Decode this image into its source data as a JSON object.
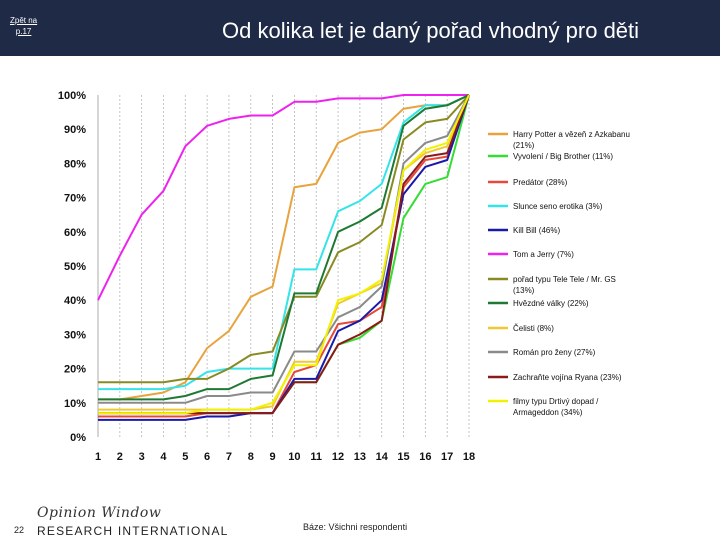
{
  "header": {
    "back_link_line1": "Zpět na",
    "back_link_line2": "p.17",
    "title": "Od kolika let je daný pořad vhodný pro děti"
  },
  "footer": {
    "page_number": "22",
    "logo_script": "Opinion Window",
    "logo_main": "RESEARCH INTERNATIONAL",
    "base_note": "Báze: Všichni respondenti"
  },
  "chart_data": {
    "type": "line",
    "title": "Od kolika let je daný pořad vhodný pro děti",
    "xlabel": "",
    "ylabel": "",
    "x": [
      1,
      2,
      3,
      4,
      5,
      6,
      7,
      8,
      9,
      10,
      11,
      12,
      13,
      14,
      15,
      16,
      17,
      18
    ],
    "ylim": [
      0,
      100
    ],
    "y_ticks": [
      "0%",
      "10%",
      "20%",
      "30%",
      "40%",
      "50%",
      "60%",
      "70%",
      "80%",
      "90%",
      "100%"
    ],
    "grid": "vertical dashed",
    "legend_position": "right",
    "series": [
      {
        "name": "Harry Potter a vězeň z Azkabanu (21%)",
        "color": "#e8a33d",
        "values": [
          11,
          11,
          12,
          13,
          16,
          26,
          31,
          41,
          44,
          73,
          74,
          86,
          89,
          90,
          96,
          97,
          97,
          100
        ]
      },
      {
        "name": "Vyvolení / Big Brother (11%)",
        "color": "#33dd33",
        "values": [
          7,
          7,
          7,
          7,
          7,
          7,
          7,
          7,
          7,
          16,
          16,
          27,
          29,
          34,
          64,
          74,
          76,
          100
        ]
      },
      {
        "name": "Predátor (28%)",
        "color": "#e8483a",
        "values": [
          6,
          6,
          6,
          6,
          6,
          7,
          7,
          7,
          7,
          19,
          21,
          33,
          34,
          38,
          73,
          81,
          82,
          100
        ]
      },
      {
        "name": "Slunce seno erotika (3%)",
        "color": "#33e4e8",
        "values": [
          14,
          14,
          14,
          14,
          15,
          19,
          20,
          20,
          20,
          49,
          49,
          66,
          69,
          74,
          92,
          97,
          97,
          100
        ]
      },
      {
        "name": "Kill Bill (46%)",
        "color": "#1a1aa8",
        "values": [
          5,
          5,
          5,
          5,
          5,
          6,
          6,
          7,
          7,
          17,
          17,
          31,
          34,
          40,
          71,
          79,
          81,
          100
        ]
      },
      {
        "name": "Tom a Jerry (7%)",
        "color": "#ee22ee",
        "values": [
          40,
          53,
          65,
          72,
          85,
          91,
          93,
          94,
          94,
          98,
          98,
          99,
          99,
          99,
          100,
          100,
          100,
          100
        ]
      },
      {
        "name": "pořad typu Tele Tele / Mr. GS (13%)",
        "color": "#8a8a22",
        "values": [
          16,
          16,
          16,
          16,
          17,
          17,
          20,
          24,
          25,
          41,
          41,
          54,
          57,
          62,
          87,
          92,
          93,
          100
        ]
      },
      {
        "name": "Hvězdné války (22%)",
        "color": "#1e7a33",
        "values": [
          11,
          11,
          11,
          11,
          12,
          14,
          14,
          17,
          18,
          42,
          42,
          60,
          63,
          67,
          91,
          96,
          97,
          100
        ]
      },
      {
        "name": "Čelisti (8%)",
        "color": "#f0c830",
        "values": [
          8,
          8,
          8,
          8,
          8,
          8,
          8,
          8,
          9,
          22,
          22,
          39,
          42,
          45,
          78,
          83,
          85,
          100
        ]
      },
      {
        "name": "Román pro ženy (27%)",
        "color": "#8a8a8a",
        "values": [
          10,
          10,
          10,
          10,
          10,
          12,
          12,
          13,
          13,
          25,
          25,
          35,
          38,
          44,
          80,
          86,
          88,
          100
        ]
      },
      {
        "name": "Zachraňte vojína Ryana (23%)",
        "color": "#8b1a1a",
        "values": [
          7,
          7,
          7,
          7,
          7,
          7,
          7,
          7,
          7,
          16,
          16,
          27,
          30,
          34,
          74,
          82,
          83,
          100
        ]
      },
      {
        "name": "filmy typu Drtivý dopad / Armageddon (34%)",
        "color": "#f2f200",
        "values": [
          7,
          7,
          7,
          7,
          7,
          8,
          8,
          8,
          10,
          21,
          21,
          40,
          42,
          46,
          78,
          84,
          86,
          100
        ]
      }
    ]
  }
}
